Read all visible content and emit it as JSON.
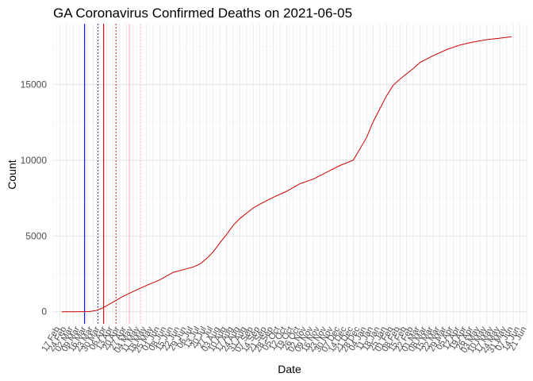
{
  "chart_data": {
    "type": "line",
    "title": "GA Coronavirus Confirmed Deaths on 2021-06-05",
    "xlabel": "Date",
    "ylabel": "Count",
    "x_range": [
      "2020-02-10",
      "2021-06-21"
    ],
    "ylim": [
      -800,
      19000
    ],
    "grid": true,
    "legend": "none",
    "y_ticks": [
      0,
      5000,
      10000,
      15000
    ],
    "y_tick_labels": [
      "0",
      "5000",
      "10000",
      "15000"
    ],
    "x_ticks": [
      "2020-02-17",
      "2020-02-24",
      "2020-03-02",
      "2020-03-09",
      "2020-03-16",
      "2020-03-23",
      "2020-03-30",
      "2020-04-06",
      "2020-04-13",
      "2020-04-20",
      "2020-04-27",
      "2020-05-04",
      "2020-05-11",
      "2020-05-18",
      "2020-05-25",
      "2020-06-01",
      "2020-06-08",
      "2020-06-15",
      "2020-06-22",
      "2020-06-29",
      "2020-07-06",
      "2020-07-13",
      "2020-07-20",
      "2020-07-27",
      "2020-08-03",
      "2020-08-10",
      "2020-08-17",
      "2020-08-24",
      "2020-08-31",
      "2020-09-07",
      "2020-09-14",
      "2020-09-21",
      "2020-09-28",
      "2020-10-05",
      "2020-10-12",
      "2020-10-19",
      "2020-10-26",
      "2020-11-02",
      "2020-11-09",
      "2020-11-16",
      "2020-11-23",
      "2020-11-30",
      "2020-12-07",
      "2020-12-14",
      "2020-12-21",
      "2020-12-28",
      "2021-01-04",
      "2021-01-11",
      "2021-01-18",
      "2021-01-25",
      "2021-02-01",
      "2021-02-08",
      "2021-02-15",
      "2021-02-22",
      "2021-03-01",
      "2021-03-08",
      "2021-03-15",
      "2021-03-22",
      "2021-03-29",
      "2021-04-05",
      "2021-04-12",
      "2021-04-19",
      "2021-04-26",
      "2021-05-03",
      "2021-05-10",
      "2021-05-17",
      "2021-05-24",
      "2021-05-31",
      "2021-06-07",
      "2021-06-14",
      "2021-06-21"
    ],
    "x_tick_labels": [
      "17 Feb",
      "24 Feb",
      "02 Mar",
      "09 Mar",
      "16 Mar",
      "23 Mar",
      "30 Mar",
      "06 Apr",
      "13 Apr",
      "20 Apr",
      "27 Apr",
      "04 May",
      "11 May",
      "18 May",
      "25 May",
      "01 Jun",
      "08 Jun",
      "15 Jun",
      "22 Jun",
      "29 Jun",
      "06 Jul",
      "13 Jul",
      "20 Jul",
      "27 Jul",
      "03 Aug",
      "10 Aug",
      "17 Aug",
      "24 Aug",
      "31 Aug",
      "07 Sep",
      "14 Sep",
      "21 Sep",
      "28 Sep",
      "05 Oct",
      "12 Oct",
      "19 Oct",
      "26 Oct",
      "02 Nov",
      "09 Nov",
      "16 Nov",
      "23 Nov",
      "30 Nov",
      "07 Dec",
      "14 Dec",
      "21 Dec",
      "28 Dec",
      "04 Jan",
      "11 Jan",
      "18 Jan",
      "25 Jan",
      "01 Feb",
      "08 Feb",
      "15 Feb",
      "22 Feb",
      "01 Mar",
      "08 Mar",
      "15 Mar",
      "22 Mar",
      "29 Mar",
      "05 Apr",
      "12 Apr",
      "19 Apr",
      "26 Apr",
      "03 May",
      "10 May",
      "17 May",
      "24 May",
      "31 May",
      "07 Jun",
      "14 Jun",
      "21 Jun"
    ],
    "vertical_lines": [
      {
        "x": "2020-03-14",
        "color": "#0000ff",
        "style": "solid"
      },
      {
        "x": "2020-03-28",
        "color": "#00008b",
        "style": "dotted"
      },
      {
        "x": "2020-04-03",
        "color": "#cc0000",
        "style": "solid"
      },
      {
        "x": "2020-04-16",
        "color": "#cc0000",
        "style": "dotted"
      },
      {
        "x": "2020-04-30",
        "color": "#ffb6c1",
        "style": "solid"
      },
      {
        "x": "2020-05-12",
        "color": "#ffb6c1",
        "style": "dotted"
      }
    ],
    "series": [
      {
        "color": "#cc0000",
        "x": [
          "2020-02-19",
          "2020-03-05",
          "2020-03-19",
          "2020-03-26",
          "2020-04-02",
          "2020-04-09",
          "2020-04-16",
          "2020-04-23",
          "2020-05-01",
          "2020-05-15",
          "2020-06-01",
          "2020-06-15",
          "2020-06-29",
          "2020-07-06",
          "2020-07-13",
          "2020-07-20",
          "2020-07-27",
          "2020-08-03",
          "2020-08-10",
          "2020-08-17",
          "2020-08-24",
          "2020-08-31",
          "2020-09-07",
          "2020-09-14",
          "2020-09-28",
          "2020-10-12",
          "2020-10-26",
          "2020-11-09",
          "2020-11-23",
          "2020-12-07",
          "2020-12-21",
          "2021-01-04",
          "2021-01-11",
          "2021-01-18",
          "2021-01-25",
          "2021-02-01",
          "2021-02-08",
          "2021-02-15",
          "2021-02-22",
          "2021-03-01",
          "2021-03-15",
          "2021-03-29",
          "2021-04-12",
          "2021-04-26",
          "2021-05-10",
          "2021-05-24",
          "2021-06-05"
        ],
        "y": [
          0,
          0,
          10,
          80,
          250,
          500,
          750,
          1000,
          1250,
          1650,
          2100,
          2600,
          2830,
          2950,
          3150,
          3500,
          3950,
          4550,
          5100,
          5700,
          6150,
          6500,
          6850,
          7100,
          7550,
          7950,
          8450,
          8750,
          9200,
          9650,
          10000,
          11500,
          12550,
          13400,
          14250,
          14950,
          15350,
          15700,
          16050,
          16450,
          16900,
          17300,
          17600,
          17800,
          17950,
          18050,
          18150
        ]
      }
    ]
  }
}
